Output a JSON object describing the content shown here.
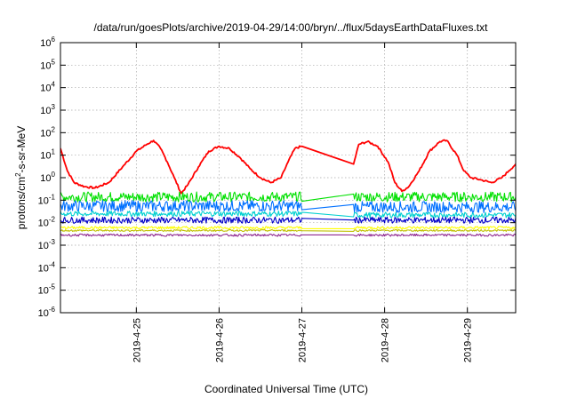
{
  "chart_data": {
    "type": "line",
    "title": "/data/run/goesPlots/archive/2019-04-29/14:00/bryn/../flux/5daysEarthDataFluxes.txt",
    "xlabel": "Coordinated Universal Time (UTC)",
    "ylabel": {
      "base": "protons/cm",
      "sup": "2",
      "rest": "-s-sr-MeV"
    },
    "y_scale": "log",
    "ylim": [
      1e-06,
      1000000.0
    ],
    "y_ticks": [
      {
        "value": 1000000.0,
        "base": "10",
        "exp": "6"
      },
      {
        "value": 100000.0,
        "base": "10",
        "exp": "5"
      },
      {
        "value": 10000.0,
        "base": "10",
        "exp": "4"
      },
      {
        "value": 1000.0,
        "base": "10",
        "exp": "3"
      },
      {
        "value": 100.0,
        "base": "10",
        "exp": "2"
      },
      {
        "value": 10.0,
        "base": "10",
        "exp": "1"
      },
      {
        "value": 1.0,
        "base": "10",
        "exp": "0"
      },
      {
        "value": 0.1,
        "base": "10",
        "exp": "-1"
      },
      {
        "value": 0.01,
        "base": "10",
        "exp": "-2"
      },
      {
        "value": 0.001,
        "base": "10",
        "exp": "-3"
      },
      {
        "value": 0.0001,
        "base": "10",
        "exp": "-4"
      },
      {
        "value": 1e-05,
        "base": "10",
        "exp": "-5"
      },
      {
        "value": 1e-06,
        "base": "10",
        "exp": "-6"
      }
    ],
    "xlim": [
      "2019-04-24 02:00",
      "2019-04-29 14:00"
    ],
    "x_ticks": [
      "2019-4-25",
      "2019-4-26",
      "2019-4-27",
      "2019-4-28",
      "2019-4-29"
    ],
    "x_tick_times": [
      "2019-04-25 00:00",
      "2019-04-26 00:00",
      "2019-04-27 00:00",
      "2019-04-28 00:00",
      "2019-04-29 00:00"
    ],
    "grid": true,
    "legend": "none",
    "data_gap": [
      "2019-04-27 00:00",
      "2019-04-27 15:00"
    ],
    "series": [
      {
        "color": "#ff0000",
        "points": [
          [
            "2019-04-24 02:00",
            20
          ],
          [
            "2019-04-24 04:00",
            2
          ],
          [
            "2019-04-24 06:00",
            0.6
          ],
          [
            "2019-04-24 09:00",
            0.4
          ],
          [
            "2019-04-24 12:00",
            0.35
          ],
          [
            "2019-04-24 16:00",
            0.6
          ],
          [
            "2019-04-24 20:00",
            3
          ],
          [
            "2019-04-25 00:00",
            15
          ],
          [
            "2019-04-25 03:00",
            30
          ],
          [
            "2019-04-25 05:00",
            45
          ],
          [
            "2019-04-25 07:00",
            20
          ],
          [
            "2019-04-25 09:00",
            5
          ],
          [
            "2019-04-25 11:00",
            1
          ],
          [
            "2019-04-25 13:00",
            0.2
          ],
          [
            "2019-04-25 15:00",
            0.5
          ],
          [
            "2019-04-25 18:00",
            3
          ],
          [
            "2019-04-25 21:00",
            15
          ],
          [
            "2019-04-26 00:00",
            25
          ],
          [
            "2019-04-26 03:00",
            20
          ],
          [
            "2019-04-26 06:00",
            8
          ],
          [
            "2019-04-26 09:00",
            2.5
          ],
          [
            "2019-04-26 12:00",
            1
          ],
          [
            "2019-04-26 15:00",
            0.6
          ],
          [
            "2019-04-26 18:00",
            1
          ],
          [
            "2019-04-26 20:00",
            5
          ],
          [
            "2019-04-26 22:00",
            20
          ],
          [
            "2019-04-27 00:00",
            25
          ],
          [
            "2019-04-27 15:00",
            4
          ],
          [
            "2019-04-27 16:30",
            30
          ],
          [
            "2019-04-27 19:00",
            40
          ],
          [
            "2019-04-27 22:00",
            25
          ],
          [
            "2019-04-28 01:00",
            5
          ],
          [
            "2019-04-28 03:00",
            0.6
          ],
          [
            "2019-04-28 05:00",
            0.25
          ],
          [
            "2019-04-28 07:00",
            0.4
          ],
          [
            "2019-04-28 10:00",
            2
          ],
          [
            "2019-04-28 13:00",
            15
          ],
          [
            "2019-04-28 16:00",
            40
          ],
          [
            "2019-04-28 18:00",
            45
          ],
          [
            "2019-04-28 21:00",
            10
          ],
          [
            "2019-04-28 23:00",
            2
          ],
          [
            "2019-04-29 01:00",
            1
          ],
          [
            "2019-04-29 04:00",
            0.8
          ],
          [
            "2019-04-29 07:00",
            0.6
          ],
          [
            "2019-04-29 10:00",
            1
          ],
          [
            "2019-04-29 12:00",
            2
          ],
          [
            "2019-04-29 14:00",
            4
          ]
        ]
      },
      {
        "color": "#00e000",
        "level": 0.14,
        "level_after_gap": 0.14,
        "spread": 0.22
      },
      {
        "color": "#0070ff",
        "level": 0.055,
        "level_after_gap": 0.05,
        "spread": 0.25
      },
      {
        "color": "#00d0d0",
        "level": 0.025,
        "level_after_gap": 0.022,
        "spread": 0.12
      },
      {
        "color": "#0000c8",
        "level": 0.013,
        "level_after_gap": 0.013,
        "spread": 0.14
      },
      {
        "color": "#ffff00",
        "level": 0.006,
        "level_after_gap": 0.006,
        "spread": 0.06
      },
      {
        "color": "#c0c000",
        "level": 0.0045,
        "level_after_gap": 0.0045,
        "spread": 0.04
      },
      {
        "color": "#902890",
        "level": 0.0028,
        "level_after_gap": 0.0028,
        "spread": 0.05
      }
    ]
  }
}
